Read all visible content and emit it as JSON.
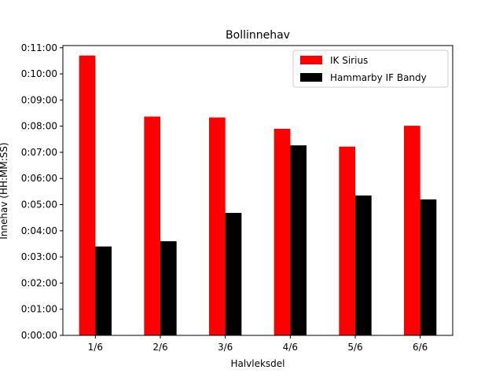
{
  "chart_data": {
    "type": "bar",
    "title": "Bollinnehav",
    "xlabel": "Halvleksdel",
    "ylabel": "Innehav (HH:MM:SS)",
    "categories": [
      "1/6",
      "2/6",
      "3/6",
      "4/6",
      "5/6",
      "6/6"
    ],
    "series": [
      {
        "name": "IK Sirius",
        "color": "#ff0000",
        "values": [
          642,
          502,
          500,
          474,
          433,
          481
        ]
      },
      {
        "name": "Hammarby IF Bandy",
        "color": "#000000",
        "values": [
          204,
          216,
          281,
          436,
          321,
          312
        ]
      }
    ],
    "value_unit": "seconds",
    "ylim": [
      0,
      665
    ],
    "yticks": [
      0,
      60,
      120,
      180,
      240,
      300,
      360,
      420,
      480,
      540,
      600,
      660
    ],
    "ytick_labels": [
      "0:00:00",
      "0:01:00",
      "0:02:00",
      "0:03:00",
      "0:04:00",
      "0:05:00",
      "0:06:00",
      "0:07:00",
      "0:08:00",
      "0:09:00",
      "0:10:00",
      "0:11:00"
    ],
    "legend_position": "top-right",
    "grid": false
  }
}
